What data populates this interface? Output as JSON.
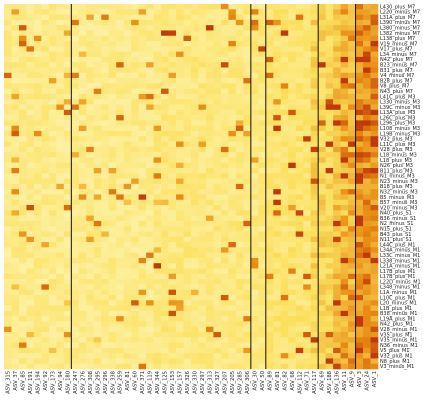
{
  "chart_data": {
    "type": "heatmap",
    "title": "",
    "xlabel": "",
    "ylabel": "",
    "colormap": {
      "low": "#fff9c4",
      "mid": "#fbe05e",
      "high": "#e88a12",
      "max": "#c0390a"
    },
    "value_range": [
      0,
      1
    ],
    "divider_color": "#111111",
    "rows": [
      "L430_plus_M7",
      "L220_minus_M7",
      "L31A_plus_M7",
      "L390_minus_M7",
      "L380_minus_M7",
      "L382_minus_M7",
      "L138_plus_M7",
      "V19_minus_M7",
      "V17_plus_M7",
      "L34_minus_M7",
      "N42_plus_M7",
      "B23_minus_M7",
      "B31_plus_M7",
      "V4_minus_M7",
      "B28_plus_M7",
      "V8_plus_M7",
      "N43_plus_M7",
      "L41C_plus_M3",
      "L330_minus_M3",
      "L39C_minus_M3",
      "L13A_plus_M3",
      "L26C_plus_M3",
      "L296_plus_M3",
      "L108_minus_M3",
      "L19B_minus_M3",
      "V32_plus_M3",
      "L11C_plus_M3",
      "V28_plus_M3",
      "L18_minus_M3",
      "L18_plus_M3",
      "N26_plus_M3",
      "B11_plus_M3",
      "N1_minus_M3",
      "N23_minus_M3",
      "B18_plus_M3",
      "N32_minus_M3",
      "B5_minus_M3",
      "B57_minus_M3",
      "V20_minus_M3",
      "N40_plus_S1",
      "B36_minus_S1",
      "N2_minus_S1",
      "N15_plus_S1",
      "B43_plus_S1",
      "N11_plus_S1",
      "L44C_plus_M1",
      "L34A_minus_M1",
      "L33C_minus_M1",
      "L338_minus_M1",
      "L21A_minus_M1",
      "L17B_plus_M1",
      "L17B_plus_M1",
      "L22D_minus_M1",
      "L348_minus_M1",
      "L1A_minus_M1",
      "L10C_plus_M1",
      "L20_minus_M1",
      "L1B_plus_M1",
      "B38_minus_M1",
      "L19A_plus_M1",
      "N42_plus_M1",
      "V28_minus_M1",
      "V35_plus_M1",
      "V35_minus_M1",
      "N36_minus_M1",
      "V5_plus_M1",
      "V32_plus_M1",
      "N8_plus_M1",
      "V3_minus_M1"
    ],
    "columns": [
      "ASV_315",
      "ASV_37",
      "ASV_85",
      "ASV_191",
      "ASV_194",
      "ASV_92",
      "ASV_173",
      "ASV_94",
      "ASV_180",
      "ASV_247",
      "ASV_276",
      "ASV_308",
      "ASV_295",
      "ASV_296",
      "ASV_338",
      "ASV_259",
      "ASV_81",
      "ASV_60",
      "ASV_371",
      "ASV_119",
      "ASV_344",
      "ASV_125",
      "ASV_153",
      "ASV_157",
      "ASV_326",
      "ASV_330",
      "ASV_297",
      "ASV_313",
      "ASV_327",
      "ASV_207",
      "ASV_205",
      "ASV_285",
      "ASV_306",
      "ASV_30",
      "ASV_50",
      "ASV_89",
      "ASV_81",
      "ASV_82",
      "ASV_68",
      "ASV_112",
      "ASV_71",
      "ASV_117",
      "ASV_69",
      "ASV_188",
      "ASV_136",
      "ASV_11",
      "ASV_9",
      "ASV_3",
      "ASV_24",
      "ASV_1"
    ],
    "dividers_after_column": [
      8,
      32,
      34,
      41,
      46
    ],
    "row_groups_from_label_suffix": [
      "M7",
      "M3",
      "S1",
      "M1"
    ]
  }
}
